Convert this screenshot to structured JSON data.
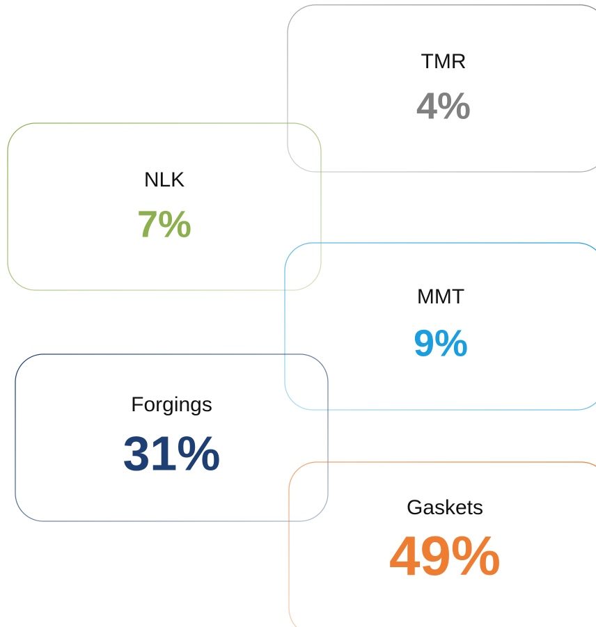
{
  "boxes": [
    {
      "label": "TMR",
      "value": "4%",
      "color": "#808080"
    },
    {
      "label": "NLK",
      "value": "7%",
      "color": "#8db04f"
    },
    {
      "label": "MMT",
      "value": "9%",
      "color": "#1a9ee0"
    },
    {
      "label": "Forgings",
      "value": "31%",
      "color": "#1e3f73"
    },
    {
      "label": "Gaskets",
      "value": "49%",
      "color": "#ee7d31"
    }
  ]
}
